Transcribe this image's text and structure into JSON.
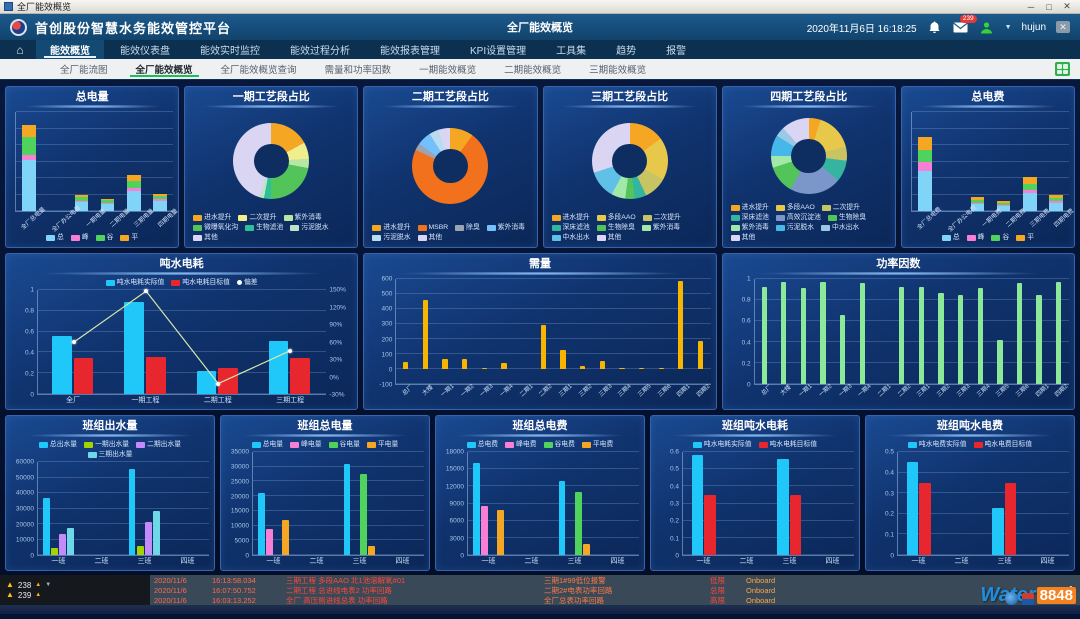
{
  "window": {
    "title": "全厂能效概览"
  },
  "header": {
    "app_title": "首创股份智慧水务能效管控平台",
    "page_title": "全厂能效概览",
    "datetime": "2020年11月6日 16:18:25",
    "badge_count": "239",
    "username": "hujun",
    "accent_color": "#1c5a8c"
  },
  "menu": {
    "items": [
      "能效概览",
      "能效仪表盘",
      "能效实时监控",
      "能效过程分析",
      "能效报表管理",
      "KPI设置管理",
      "工具集",
      "趋势",
      "报警"
    ],
    "active_index": 0
  },
  "subtabs": {
    "items": [
      "全厂能流图",
      "全厂能效概览",
      "全厂能效概览查询",
      "需量和功率因数",
      "一期能效概览",
      "二期能效概览",
      "三期能效概览"
    ],
    "active_index": 1
  },
  "chart_data": [
    {
      "type": "stacked",
      "title": "总电量",
      "categories": [
        "全厂总电量",
        "全厂办公电量",
        "一期电量",
        "二期电量",
        "三期电量",
        "四期电量"
      ],
      "rotate_labels": true,
      "ylim": [
        0,
        100
      ],
      "yticks": [],
      "gridcount": 7,
      "legend_pos": "bottom",
      "series": [
        {
          "name": "总",
          "color": "#7fd4f7",
          "values": [
            52,
            0,
            9,
            7,
            20,
            10
          ]
        },
        {
          "name": "峰",
          "color": "#f97fd4",
          "values": [
            5,
            0,
            1,
            1,
            3,
            2
          ]
        },
        {
          "name": "谷",
          "color": "#4fd35d",
          "values": [
            18,
            0,
            4,
            3,
            7,
            3
          ]
        },
        {
          "name": "平",
          "color": "#f5a623",
          "values": [
            12,
            0,
            2,
            1,
            6,
            2
          ]
        }
      ]
    },
    {
      "type": "donut",
      "title": "一期工艺段占比",
      "legend_pos": "bottom",
      "legend_align": "left",
      "labels": [
        "进水提升",
        "二次提升",
        "紫外消毒",
        "微曝氧化沟",
        "生物滤池",
        "污泥脱水",
        "其他"
      ],
      "colors": [
        "#f5a623",
        "#f3ee8d",
        "#b8e6a3",
        "#52c45a",
        "#2fbf9b",
        "#bfe3c8",
        "#d9d5f2"
      ],
      "values": [
        17,
        7,
        4,
        22,
        3,
        2,
        45
      ]
    },
    {
      "type": "donut",
      "title": "二期工艺段占比",
      "legend_pos": "bottom",
      "legend_align": "left",
      "labels": [
        "进水提升",
        "MSBR",
        "除臭",
        "紫外消毒",
        "污泥脱水",
        "其他"
      ],
      "colors": [
        "#f5a623",
        "#f2711c",
        "#9aa5b1",
        "#74c0fc",
        "#b8dcf0",
        "#d9d5f2"
      ],
      "values": [
        10,
        72,
        3,
        6,
        4,
        5
      ]
    },
    {
      "type": "donut",
      "title": "三期工艺段占比",
      "legend_pos": "bottom",
      "legend_align": "left",
      "labels": [
        "进水提升",
        "多段AAO",
        "二次提升",
        "深床滤池",
        "生物除臭",
        "紫外消毒",
        "中水出水",
        "其他"
      ],
      "colors": [
        "#f5a623",
        "#e8c84a",
        "#c9c463",
        "#35b5a0",
        "#52c45a",
        "#a2e8a8",
        "#5fc0e8",
        "#d9d5f2"
      ],
      "values": [
        15,
        18,
        10,
        5,
        4,
        6,
        12,
        30
      ]
    },
    {
      "type": "donut",
      "title": "四期工艺段占比",
      "legend_pos": "bottom",
      "legend_align": "left",
      "labels": [
        "进水提升",
        "多段AAO",
        "二次提升",
        "深床滤池",
        "高效沉淀池",
        "生物除臭",
        "紫外消毒",
        "污泥脱水",
        "中水出水",
        "其他"
      ],
      "colors": [
        "#f5a623",
        "#e8c84a",
        "#c9c463",
        "#35b5a0",
        "#7b96c8",
        "#52c45a",
        "#a2e8a8",
        "#45b7e8",
        "#9cc8e8",
        "#d9d5f2"
      ],
      "values": [
        5,
        16,
        6,
        9,
        22,
        12,
        5,
        9,
        4,
        12
      ]
    },
    {
      "type": "stacked",
      "title": "总电费",
      "categories": [
        "全厂总电费",
        "全厂办公电费",
        "一期电费",
        "二期电费",
        "三期电费",
        "四期电费"
      ],
      "rotate_labels": true,
      "ylim": [
        0,
        100
      ],
      "yticks": [],
      "gridcount": 7,
      "legend_pos": "bottom",
      "series": [
        {
          "name": "总",
          "color": "#7fd4f7",
          "values": [
            40,
            0,
            7,
            5,
            18,
            8
          ]
        },
        {
          "name": "峰",
          "color": "#f97fd4",
          "values": [
            10,
            0,
            1,
            1,
            3,
            2
          ]
        },
        {
          "name": "谷",
          "color": "#4fd35d",
          "values": [
            12,
            0,
            3,
            2,
            6,
            3
          ]
        },
        {
          "name": "平",
          "color": "#f5a623",
          "values": [
            13,
            0,
            3,
            2,
            7,
            3
          ]
        }
      ]
    },
    {
      "type": "grouped",
      "title": "吨水电耗",
      "categories": [
        "全厂",
        "一期工程",
        "二期工程",
        "三期工程"
      ],
      "ylim": [
        0,
        1
      ],
      "yticks": [
        0,
        0.2,
        0.4,
        0.6,
        0.8,
        1
      ],
      "legend_pos": "top",
      "series": [
        {
          "name": "吨水电耗实际值",
          "color": "#1fc8f8",
          "values": [
            0.56,
            0.88,
            0.22,
            0.51
          ]
        },
        {
          "name": "吨水电耗目标值",
          "color": "#e8262d",
          "values": [
            0.35,
            0.36,
            0.25,
            0.35
          ]
        }
      ],
      "line": {
        "name": "偏差",
        "color": "#d8e8a8",
        "values": [
          60,
          148,
          -12,
          45
        ]
      },
      "right_axis": {
        "lim": [
          -30,
          150
        ],
        "ticks": [
          -30,
          0,
          30,
          60,
          90,
          120,
          150
        ],
        "suffix": "%"
      }
    },
    {
      "type": "grouped",
      "title": "需量",
      "categories": [
        "总厂",
        "大楼",
        "一期1",
        "一期2",
        "一期3",
        "一期4",
        "二期1",
        "二期2",
        "三期1",
        "三期2",
        "三期3",
        "三期4",
        "三期5",
        "三期6",
        "四期1",
        "四期2"
      ],
      "rotate_labels": true,
      "ylim": [
        -100,
        600
      ],
      "yticks": [
        -100,
        0,
        100,
        200,
        300,
        400,
        500,
        600
      ],
      "legend_pos": "none",
      "series": [
        {
          "name": "需量",
          "color": "#f7b500",
          "values": [
            50,
            460,
            70,
            70,
            5,
            40,
            0,
            295,
            125,
            20,
            55,
            5,
            5,
            10,
            585,
            190
          ]
        }
      ]
    },
    {
      "type": "grouped",
      "title": "功率因数",
      "categories": [
        "总厂",
        "大楼",
        "一期1",
        "一期2",
        "一期3",
        "一期4",
        "二期1",
        "二期2",
        "三期1",
        "三期2",
        "三期3",
        "三期4",
        "三期5",
        "三期6",
        "四期1",
        "四期2"
      ],
      "rotate_labels": true,
      "ylim": [
        0,
        1
      ],
      "yticks": [
        0,
        0.2,
        0.4,
        0.6,
        0.8,
        1
      ],
      "legend_pos": "none",
      "series": [
        {
          "name": "功率因数",
          "color": "#8ce99a",
          "values": [
            0.92,
            0.97,
            0.91,
            0.97,
            0.66,
            0.96,
            0,
            0.92,
            0.92,
            0.87,
            0.85,
            0.91,
            0.42,
            0.96,
            0.85,
            0.97
          ]
        }
      ]
    },
    {
      "type": "grouped",
      "title": "班组出水量",
      "categories": [
        "一班",
        "二班",
        "三班",
        "四班"
      ],
      "ylim": [
        0,
        60000
      ],
      "yticks": [
        0,
        10000,
        20000,
        30000,
        40000,
        50000,
        60000
      ],
      "legend_pos": "top",
      "series": [
        {
          "name": "总出水量",
          "color": "#1fc8f8",
          "values": [
            36500,
            0,
            55500,
            0
          ]
        },
        {
          "name": "一期出水量",
          "color": "#a4d400",
          "values": [
            4500,
            0,
            5500,
            0
          ]
        },
        {
          "name": "二期出水量",
          "color": "#c58af9",
          "values": [
            13500,
            0,
            21000,
            0
          ]
        },
        {
          "name": "三期出水量",
          "color": "#6fd8e8",
          "values": [
            17500,
            0,
            28500,
            0
          ]
        }
      ]
    },
    {
      "type": "grouped",
      "title": "班组总电量",
      "categories": [
        "一班",
        "二班",
        "三班",
        "四班"
      ],
      "ylim": [
        0,
        35000
      ],
      "yticks": [
        0,
        5000,
        10000,
        15000,
        20000,
        25000,
        30000,
        35000
      ],
      "legend_pos": "top",
      "series": [
        {
          "name": "总电量",
          "color": "#1fc8f8",
          "values": [
            21000,
            0,
            31000,
            0
          ]
        },
        {
          "name": "峰电量",
          "color": "#f97fd4",
          "values": [
            8800,
            0,
            0,
            0
          ]
        },
        {
          "name": "谷电量",
          "color": "#4fd35d",
          "values": [
            0,
            0,
            27500,
            0
          ]
        },
        {
          "name": "平电量",
          "color": "#f5a623",
          "values": [
            12000,
            0,
            3000,
            0
          ]
        }
      ]
    },
    {
      "type": "grouped",
      "title": "班组总电费",
      "categories": [
        "一班",
        "二班",
        "三班",
        "四班"
      ],
      "ylim": [
        0,
        18000
      ],
      "yticks": [
        0,
        3000,
        6000,
        9000,
        12000,
        15000,
        18000
      ],
      "legend_pos": "top",
      "series": [
        {
          "name": "总电费",
          "color": "#1fc8f8",
          "values": [
            16000,
            0,
            13000,
            0
          ]
        },
        {
          "name": "峰电费",
          "color": "#f97fd4",
          "values": [
            8500,
            0,
            0,
            0
          ]
        },
        {
          "name": "谷电费",
          "color": "#4fd35d",
          "values": [
            0,
            0,
            11000,
            0
          ]
        },
        {
          "name": "平电费",
          "color": "#f5a623",
          "values": [
            7800,
            0,
            2000,
            0
          ]
        }
      ]
    },
    {
      "type": "grouped",
      "title": "班组吨水电耗",
      "categories": [
        "一班",
        "二班",
        "三班",
        "四班"
      ],
      "ylim": [
        0,
        0.6
      ],
      "yticks": [
        0,
        0.1,
        0.2,
        0.3,
        0.4,
        0.5,
        0.6
      ],
      "legend_pos": "top",
      "series": [
        {
          "name": "吨水电耗实际值",
          "color": "#1fc8f8",
          "values": [
            0.58,
            0,
            0.56,
            0
          ]
        },
        {
          "name": "吨水电耗目标值",
          "color": "#e8262d",
          "values": [
            0.35,
            0,
            0.35,
            0
          ]
        }
      ]
    },
    {
      "type": "grouped",
      "title": "班组吨水电费",
      "categories": [
        "一班",
        "二班",
        "三班",
        "四班"
      ],
      "ylim": [
        0,
        0.5
      ],
      "yticks": [
        0,
        0.1,
        0.2,
        0.3,
        0.4,
        0.5
      ],
      "legend_pos": "top",
      "series": [
        {
          "name": "吨水电费实际值",
          "color": "#1fc8f8",
          "values": [
            0.45,
            0,
            0.23,
            0
          ]
        },
        {
          "name": "吨水电费目标值",
          "color": "#e8262d",
          "values": [
            0.35,
            0,
            0.35,
            0
          ]
        }
      ]
    }
  ],
  "alarm_bar": {
    "counts": [
      "238",
      "239"
    ],
    "rows": [
      {
        "date": "2020/11/6",
        "time": "16:13:58.034",
        "desc": "三期工程 多段AAO 北1池溶解氧#01",
        "name": "三期1#99低位报警",
        "limit": "低限",
        "status": "Onboard"
      },
      {
        "date": "2020/11/6",
        "time": "16:07:50.752",
        "desc": "二期工程 总进线电表2 功率回路",
        "name": "二期2#电表功率回路",
        "limit": "总限",
        "status": "Onboard"
      },
      {
        "date": "2020/11/6",
        "time": "16:03:13.252",
        "desc": "全厂 高压侧进线总表 功率回路",
        "name": "全厂总表功率回路",
        "limit": "高限",
        "status": "Onboard"
      }
    ]
  },
  "watermark": {
    "text_blue": "Water",
    "text_orange": "8848"
  }
}
